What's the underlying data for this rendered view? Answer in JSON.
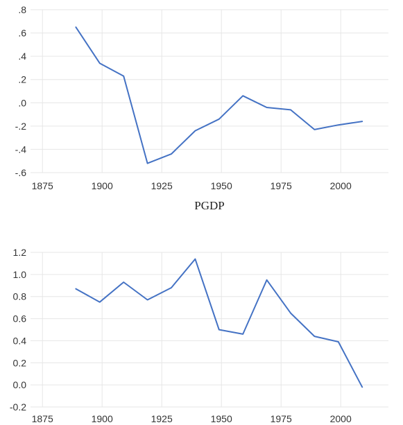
{
  "colors": {
    "series": "#4472c4",
    "grid": "#e6e6e6"
  },
  "chart_data": [
    {
      "type": "line",
      "title": "",
      "xlabel": "",
      "ylabel": "",
      "grid": true,
      "xlim": [
        1870,
        2020
      ],
      "ylim": [
        -0.6,
        0.8
      ],
      "xticks": [
        1875,
        1900,
        1925,
        1950,
        1975,
        2000
      ],
      "yticks": [
        -0.6,
        -0.4,
        -0.2,
        0.0,
        0.2,
        0.4,
        0.6,
        0.8
      ],
      "ytick_labels": [
        "-.6",
        "-.4",
        "-.2",
        ".0",
        ".2",
        ".4",
        ".6",
        ".8"
      ],
      "series": [
        {
          "x": [
            1889,
            1899,
            1909,
            1919,
            1929,
            1939,
            1949,
            1959,
            1969,
            1979,
            1989,
            1999,
            2009
          ],
          "y": [
            0.65,
            0.34,
            0.23,
            -0.52,
            -0.44,
            -0.24,
            -0.14,
            0.06,
            -0.04,
            -0.06,
            -0.23,
            -0.19,
            -0.16
          ]
        }
      ]
    },
    {
      "type": "line",
      "title": "PGDP",
      "xlabel": "",
      "ylabel": "",
      "grid": true,
      "xlim": [
        1870,
        2020
      ],
      "ylim": [
        -0.2,
        1.2
      ],
      "xticks": [
        1875,
        1900,
        1925,
        1950,
        1975,
        2000
      ],
      "yticks": [
        -0.2,
        0.0,
        0.2,
        0.4,
        0.6,
        0.8,
        1.0,
        1.2
      ],
      "ytick_labels": [
        "-0.2",
        "0.0",
        "0.2",
        "0.4",
        "0.6",
        "0.8",
        "1.0",
        "1.2"
      ],
      "series": [
        {
          "x": [
            1889,
            1899,
            1909,
            1919,
            1929,
            1939,
            1949,
            1959,
            1969,
            1979,
            1989,
            1999,
            2009
          ],
          "y": [
            0.87,
            0.75,
            0.93,
            0.77,
            0.88,
            1.14,
            0.5,
            0.46,
            0.95,
            0.65,
            0.44,
            0.39,
            -0.02
          ]
        }
      ]
    }
  ]
}
